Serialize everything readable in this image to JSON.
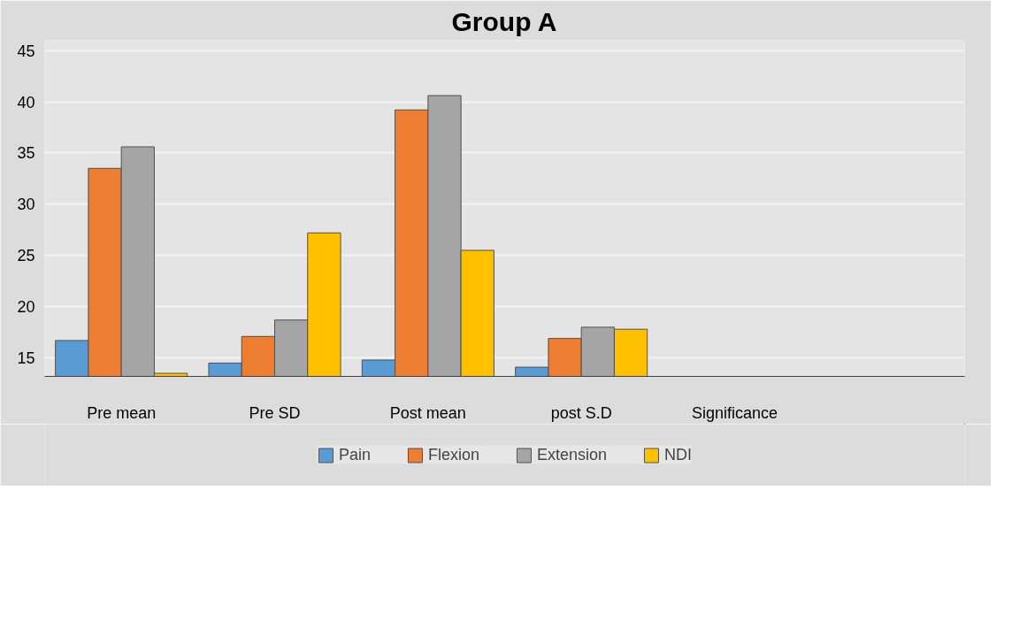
{
  "chart_data": {
    "type": "bar",
    "title": "Group A",
    "categories": [
      "Pre mean",
      "Pre SD",
      "Post mean",
      "post S.D",
      "Significance",
      null
    ],
    "series": [
      {
        "name": "Pain",
        "color": "#5b9bd5",
        "values": [
          16.7,
          14.5,
          14.8,
          14.1,
          null,
          null
        ]
      },
      {
        "name": "Flexion",
        "color": "#ed7d31",
        "values": [
          33.5,
          17.1,
          39.2,
          16.9,
          null,
          null
        ]
      },
      {
        "name": "Extension",
        "color": "#a5a5a5",
        "values": [
          35.6,
          18.7,
          40.6,
          18.0,
          null,
          null
        ]
      },
      {
        "name": "NDI",
        "color": "#ffc000",
        "values": [
          13.5,
          27.2,
          25.5,
          17.8,
          null,
          null
        ]
      }
    ],
    "ylim": [
      13.2,
      46
    ],
    "yticks": [
      15,
      20,
      25,
      30,
      35,
      40,
      45
    ],
    "grid": "y",
    "legend": "bottom"
  }
}
